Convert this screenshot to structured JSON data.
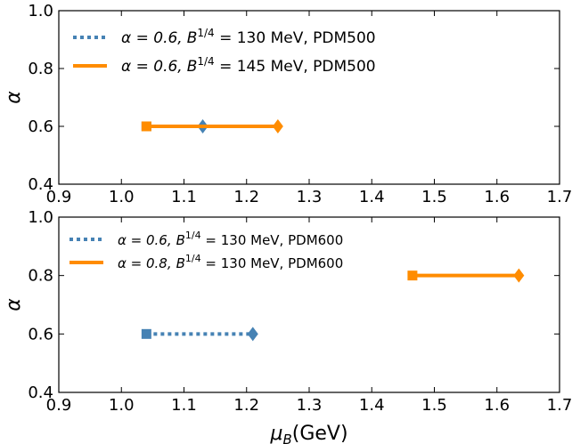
{
  "chart_data": [
    {
      "type": "line",
      "panel": "top",
      "xlim": [
        0.9,
        1.7
      ],
      "ylim": [
        0.4,
        1.0
      ],
      "xticks": [
        "0.9",
        "1.0",
        "1.1",
        "1.2",
        "1.3",
        "1.4",
        "1.5",
        "1.6",
        "1.7"
      ],
      "yticks": [
        "0.4",
        "0.6",
        "0.8",
        "1.0"
      ],
      "ylabel": "α",
      "xlabel": "",
      "grid": false,
      "legend_position": "upper-left",
      "series": [
        {
          "legend_alpha": "α = 0.6,",
          "legend_b": "B",
          "legend_exp": "1/4",
          "legend_rest": " = 130 MeV, PDM500",
          "color": "#4682b4",
          "linestyle": "dotted",
          "start": {
            "x": 1.04,
            "y": 0.6,
            "marker": "square"
          },
          "end": {
            "x": 1.13,
            "y": 0.6,
            "marker": "diamond"
          }
        },
        {
          "legend_alpha": "α = 0.6,",
          "legend_b": "B",
          "legend_exp": "1/4",
          "legend_rest": " = 145 MeV, PDM500",
          "color": "#ff8c00",
          "linestyle": "solid",
          "start": {
            "x": 1.04,
            "y": 0.6,
            "marker": "square"
          },
          "end": {
            "x": 1.25,
            "y": 0.6,
            "marker": "diamond"
          }
        }
      ]
    },
    {
      "type": "line",
      "panel": "bottom",
      "xlim": [
        0.9,
        1.7
      ],
      "ylim": [
        0.4,
        1.0
      ],
      "xticks": [
        "0.9",
        "1.0",
        "1.1",
        "1.2",
        "1.3",
        "1.4",
        "1.5",
        "1.6",
        "1.7"
      ],
      "yticks": [
        "0.4",
        "0.6",
        "0.8",
        "1.0"
      ],
      "ylabel": "α",
      "xlabel": "μB(GeV)",
      "grid": false,
      "legend_position": "upper-left",
      "series": [
        {
          "legend_alpha": "α = 0.6,",
          "legend_b": "B",
          "legend_exp": "1/4",
          "legend_rest": " = 130 MeV, PDM600",
          "color": "#4682b4",
          "linestyle": "dotted",
          "start": {
            "x": 1.04,
            "y": 0.6,
            "marker": "square"
          },
          "end": {
            "x": 1.21,
            "y": 0.6,
            "marker": "diamond"
          }
        },
        {
          "legend_alpha": "α = 0.8,",
          "legend_b": "B",
          "legend_exp": "1/4",
          "legend_rest": " = 130 MeV, PDM600",
          "color": "#ff8c00",
          "linestyle": "solid",
          "start": {
            "x": 1.465,
            "y": 0.8,
            "marker": "square"
          },
          "end": {
            "x": 1.635,
            "y": 0.8,
            "marker": "diamond"
          }
        }
      ]
    }
  ]
}
